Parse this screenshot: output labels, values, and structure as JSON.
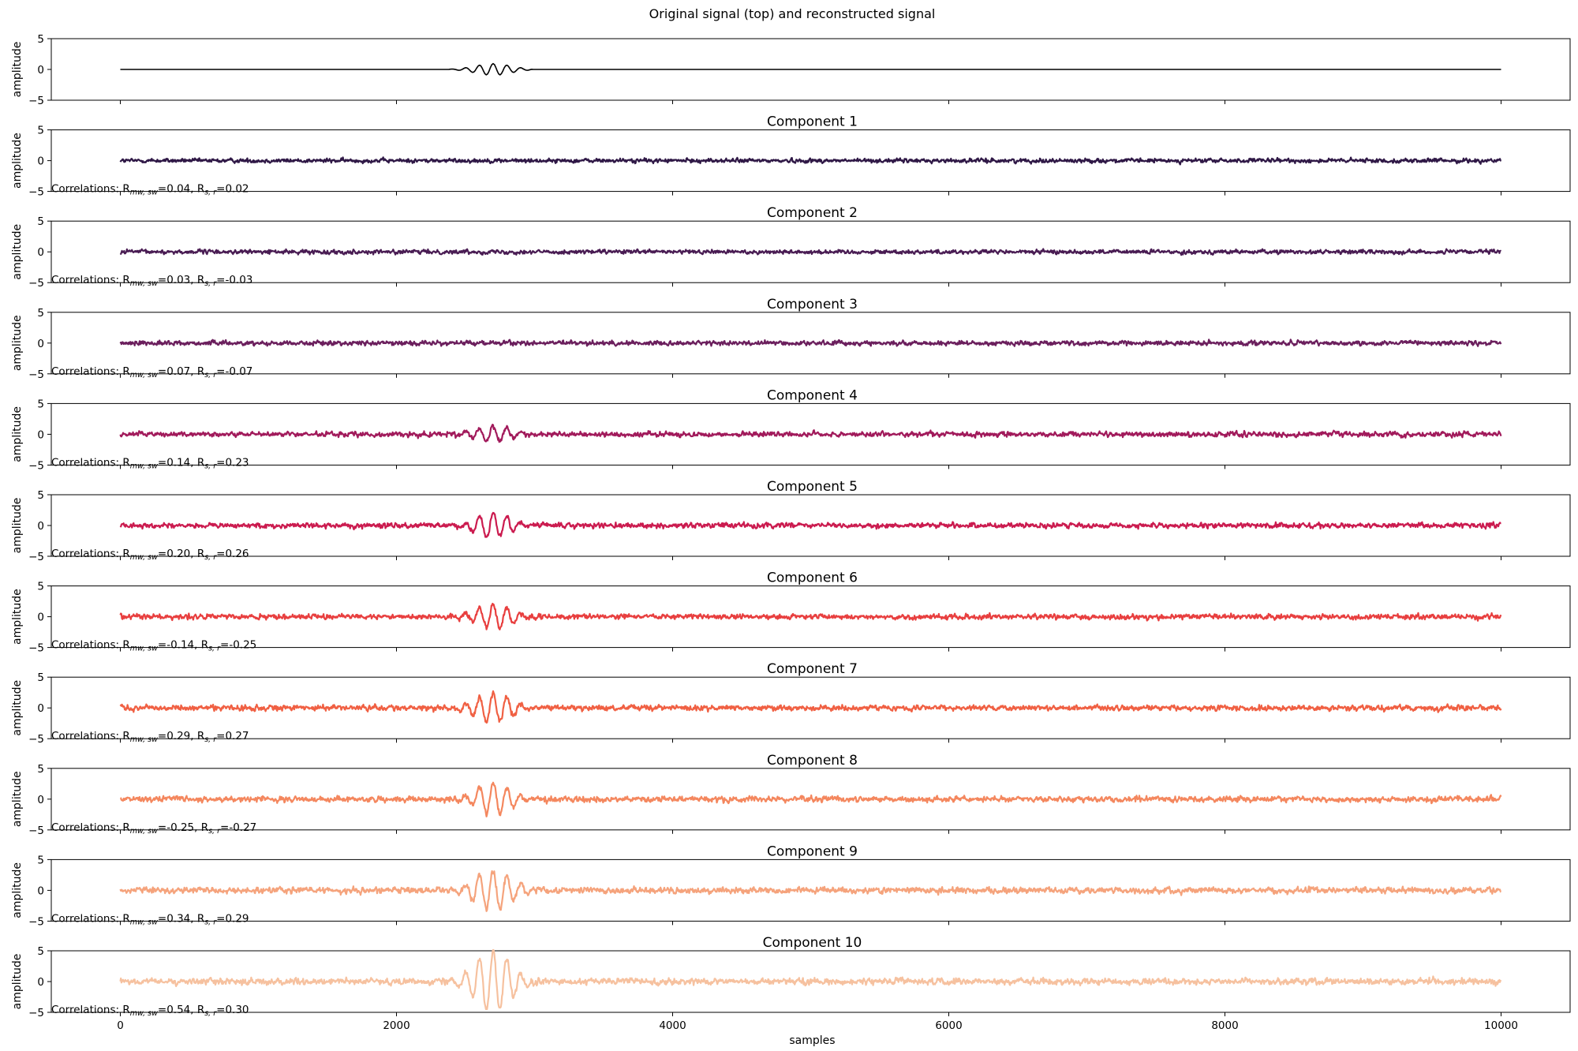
{
  "suptitle": "Original signal (top) and reconstructed signal",
  "chart_data": {
    "type": "line",
    "xlabel": "samples",
    "ylabel": "amplitude",
    "xlim": [
      -500,
      10500
    ],
    "ylim": [
      -5,
      5
    ],
    "x_ticks": [
      0,
      2000,
      4000,
      6000,
      8000,
      10000
    ],
    "y_ticks": [
      -5,
      0,
      5
    ],
    "y_tick_labels": [
      "−5",
      "0",
      "5"
    ],
    "n_samples": 10000,
    "burst": {
      "center": 2700,
      "width": 180,
      "period": 100,
      "span": [
        2380,
        2980
      ]
    },
    "panels": [
      {
        "title": "",
        "color": "#000000",
        "burst_amp": 0.95,
        "noise": 0.0,
        "corr_prefix": "",
        "r_mw_sw": "",
        "r_s_r": ""
      },
      {
        "title": "Component 1",
        "color": "#2f1846",
        "burst_amp": 0.0,
        "noise": 0.22,
        "corr_prefix": "Correlations: R",
        "r_mw_sw": "0.04",
        "r_s_r": "0.02"
      },
      {
        "title": "Component 2",
        "color": "#491c53",
        "burst_amp": 0.0,
        "noise": 0.22,
        "corr_prefix": "Correlations: R",
        "r_mw_sw": "0.03",
        "r_s_r": "-0.03"
      },
      {
        "title": "Component 3",
        "color": "#6b1f5d",
        "burst_amp": 0.08,
        "noise": 0.24,
        "corr_prefix": "Correlations: R",
        "r_mw_sw": "0.07",
        "r_s_r": "-0.07"
      },
      {
        "title": "Component 4",
        "color": "#a11a5b",
        "burst_amp": 1.35,
        "noise": 0.26,
        "corr_prefix": "Correlations: R",
        "r_mw_sw": "0.14",
        "r_s_r": "0.23"
      },
      {
        "title": "Component 5",
        "color": "#cb1b4f",
        "burst_amp": 2.0,
        "noise": 0.27,
        "corr_prefix": "Correlations: R",
        "r_mw_sw": "0.20",
        "r_s_r": "0.26"
      },
      {
        "title": "Component 6",
        "color": "#e83f3f",
        "burst_amp": 1.9,
        "noise": 0.27,
        "corr_prefix": "Correlations: R",
        "r_mw_sw": "-0.14",
        "r_s_r": "-0.25"
      },
      {
        "title": "Component 7",
        "color": "#f06043",
        "burst_amp": 2.4,
        "noise": 0.28,
        "corr_prefix": "Correlations: R",
        "r_mw_sw": "0.29",
        "r_s_r": "0.27"
      },
      {
        "title": "Component 8",
        "color": "#f4875e",
        "burst_amp": 2.4,
        "noise": 0.3,
        "corr_prefix": "Correlations: R",
        "r_mw_sw": "-0.25",
        "r_s_r": "-0.27"
      },
      {
        "title": "Component 9",
        "color": "#f5a37c",
        "burst_amp": 3.2,
        "noise": 0.32,
        "corr_prefix": "Correlations: R",
        "r_mw_sw": "0.34",
        "r_s_r": "0.29"
      },
      {
        "title": "Component 10",
        "color": "#f6c19f",
        "burst_amp": 4.9,
        "noise": 0.34,
        "corr_prefix": "Correlations: R",
        "r_mw_sw": "0.54",
        "r_s_r": "0.30"
      }
    ],
    "corr_sub_mw_sw": "mw, sw",
    "corr_sub_s_r": "s, r",
    "corr_eq": "=",
    "corr_sep": ", R"
  }
}
